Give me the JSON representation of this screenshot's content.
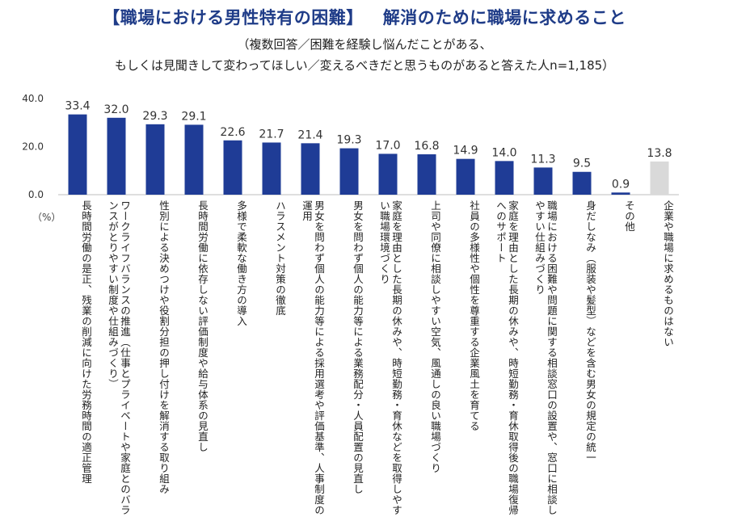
{
  "header": {
    "title_left": "【職場における男性特有の困難】",
    "title_right": "解消のために職場に求めること",
    "subtitle_line1": "（複数回答／困難を経験し悩んだことがある、",
    "subtitle_line2": "もしくは見聞きして変わってほしい／変えるべきだと思うものがあると答えた人n=1,185）"
  },
  "colors": {
    "bar": "#1f3c96",
    "bar_last": "#d9d9d9",
    "title": "#1f3c88"
  },
  "chart_data": {
    "type": "bar",
    "title": "【職場における男性特有の困難】 解消のために職場に求めること",
    "unit_label": "（%）",
    "ylim": [
      0,
      40
    ],
    "yticks": [
      "40.0",
      "20.0",
      "0.0"
    ],
    "ytick_values": [
      40,
      20,
      0
    ],
    "categories": [
      "長時間労働の是正、残業の削減に向けた労務時間の適正管理",
      "ワークライフバランスの推進（仕事とプライベートや家庭とのバランスがとりやすい制度や仕組みづくり）",
      "性別による決めつけや役割分担の押し付けを解消する取り組み",
      "長時間労働に依存しない評価制度や給与体系の見直し",
      "多様で柔軟な働き方の導入",
      "ハラスメント対策の徹底",
      "男女を問わず個人の能力等による採用選考や評価基準、人事制度の運用",
      "男女を問わず個人の能力等による業務配分・人員配置の見直し",
      "家庭を理由とした長期の休みや、時短勤務・育休などを取得しやすい職場環境づくり",
      "上司や同僚に相談しやすい空気、風通しの良い職場づくり",
      "社員の多様性や個性を尊重する企業風土を育てる",
      "家庭を理由とした長期の休みや、時短勤務・育休取得後の職場復帰へのサポート",
      "職場における困難や問題に関する相談窓口の設置や、窓口に相談しやすい仕組みづくり",
      "身だしなみ（服装や髪型）などを含む男女の規定の統一",
      "その他",
      "企業や職場に求めるものはない"
    ],
    "values": [
      33.4,
      32.0,
      29.3,
      29.1,
      22.6,
      21.7,
      21.4,
      19.3,
      17.0,
      16.8,
      14.9,
      14.0,
      11.3,
      9.5,
      0.9,
      13.8
    ],
    "value_labels": [
      "33.4",
      "32.0",
      "29.3",
      "29.1",
      "22.6",
      "21.7",
      "21.4",
      "19.3",
      "17.0",
      "16.8",
      "14.9",
      "14.0",
      "11.3",
      "9.5",
      "0.9",
      "13.8"
    ],
    "highlight_last": true
  }
}
